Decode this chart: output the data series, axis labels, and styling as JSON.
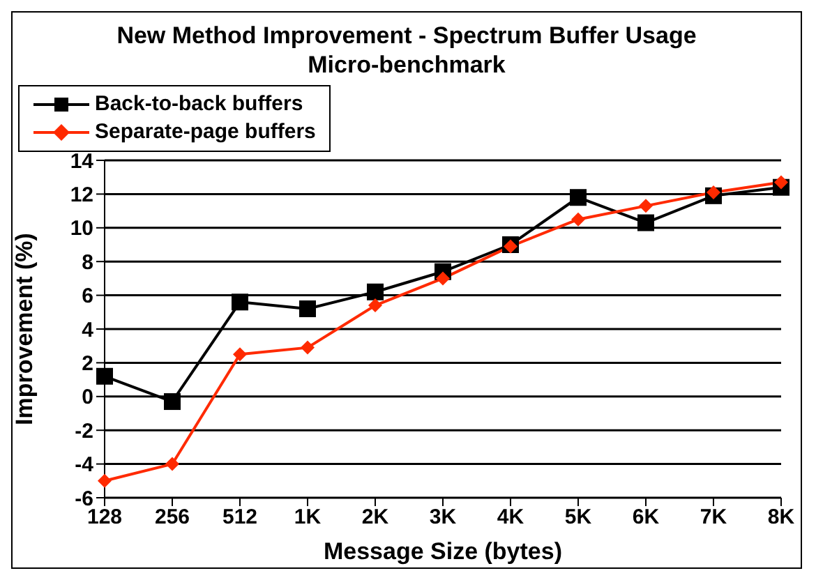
{
  "chart_data": {
    "type": "line",
    "title": "New Method Improvement - Spectrum Buffer Usage Micro-benchmark",
    "xlabel": "Message Size (bytes)",
    "ylabel": "Improvement (%)",
    "categories": [
      "128",
      "256",
      "512",
      "1K",
      "2K",
      "3K",
      "4K",
      "5K",
      "6K",
      "7K",
      "8K"
    ],
    "series": [
      {
        "name": "Back-to-back buffers",
        "color": "#000000",
        "marker": "square",
        "values": [
          1.2,
          -0.3,
          5.6,
          5.2,
          6.2,
          7.4,
          9.0,
          11.8,
          10.3,
          11.9,
          12.4
        ]
      },
      {
        "name": "Separate-page buffers",
        "color": "#ff2a00",
        "marker": "diamond",
        "values": [
          -5.0,
          -4.0,
          2.5,
          2.9,
          5.4,
          7.0,
          8.9,
          10.5,
          11.3,
          12.1,
          12.7
        ]
      }
    ],
    "ylim": [
      -6,
      14
    ],
    "yticks": [
      -6,
      -4,
      -2,
      0,
      2,
      4,
      6,
      8,
      10,
      12,
      14
    ],
    "grid": "y",
    "legend": "top",
    "line_style": "solid"
  }
}
